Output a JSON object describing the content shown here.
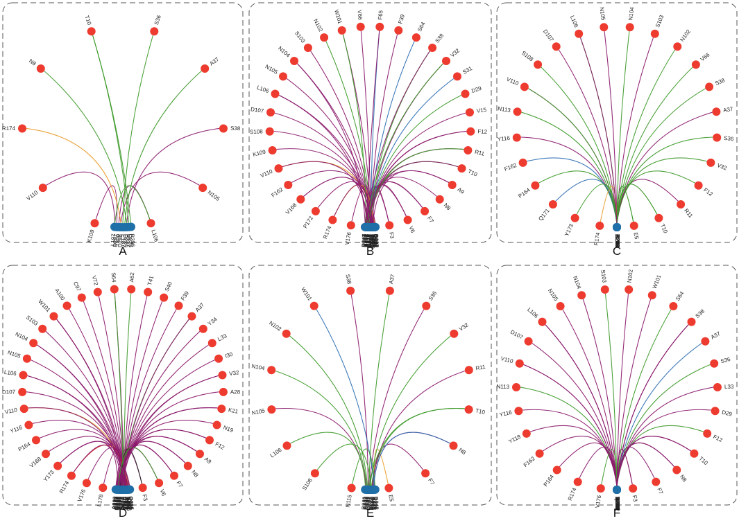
{
  "colors": {
    "node_red": "#ee3b2f",
    "node_blue": "#1f6fa8",
    "link_purple": "#8b1a6b",
    "link_green": "#3e9a2a",
    "link_orange": "#e89b2a",
    "link_blue": "#2f6fb3",
    "link_red": "#d42a1f",
    "link_black": "#222222"
  },
  "panels": [
    {
      "letter": "A",
      "red": [
        "L106",
        "N105",
        "S38",
        "A37",
        "S36",
        "T10",
        "N8",
        "R174",
        "V110",
        "K109"
      ],
      "blue": [
        "L197",
        "D297",
        "T300",
        "D298",
        "E187",
        "D279",
        "P227",
        "Q225",
        "R296"
      ],
      "links": [
        [
          "K109",
          "D297",
          "purple"
        ],
        [
          "V110",
          "L197",
          "purple"
        ],
        [
          "L106",
          "T300",
          "purple"
        ],
        [
          "N105",
          "D298",
          "purple"
        ],
        [
          "S38",
          "P227",
          "purple"
        ],
        [
          "A37",
          "D279",
          "green"
        ],
        [
          "S36",
          "E187",
          "green"
        ],
        [
          "T10",
          "Q225",
          "green"
        ],
        [
          "T10",
          "R296",
          "green"
        ],
        [
          "N8",
          "P227",
          "green"
        ],
        [
          "R174",
          "D298",
          "orange"
        ],
        [
          "L106",
          "L197",
          "green"
        ]
      ]
    },
    {
      "letter": "B",
      "red": [
        "F3",
        "V6",
        "F7",
        "N8",
        "A9",
        "T10",
        "R11",
        "F12",
        "V15",
        "D29",
        "S31",
        "V32",
        "S38",
        "S64",
        "F39",
        "F65",
        "V66",
        "W101",
        "N102",
        "S103",
        "N104",
        "N105",
        "L106",
        "D107",
        "S108",
        "K109",
        "V110",
        "F162",
        "V168",
        "P172",
        "R174",
        "V176"
      ],
      "blue": [
        "R287",
        "Q289",
        "Q297",
        "R292",
        "S279",
        "L190",
        "A281",
        "R229",
        "D280",
        "W283",
        "F221",
        "E234",
        "N243",
        "F231",
        "D246",
        "E228",
        "Q223",
        "E277",
        "Y278",
        "A276",
        "D274",
        "E273",
        "F252",
        "R251",
        "V232",
        "E230",
        "K227",
        "D247"
      ],
      "links": [
        [
          "F3",
          "D247",
          "purple"
        ],
        [
          "V6",
          "K227",
          "purple"
        ],
        [
          "F7",
          "E230",
          "purple"
        ],
        [
          "N8",
          "V232",
          "purple"
        ],
        [
          "A9",
          "R251",
          "purple"
        ],
        [
          "T10",
          "F252",
          "green"
        ],
        [
          "R11",
          "E273",
          "purple"
        ],
        [
          "F12",
          "D274",
          "purple"
        ],
        [
          "V15",
          "A276",
          "purple"
        ],
        [
          "D29",
          "Y278",
          "green"
        ],
        [
          "S31",
          "E277",
          "blue"
        ],
        [
          "V32",
          "Q223",
          "purple"
        ],
        [
          "S38",
          "E228",
          "green"
        ],
        [
          "S64",
          "D246",
          "blue"
        ],
        [
          "F39",
          "F231",
          "purple"
        ],
        [
          "F65",
          "N243",
          "blue"
        ],
        [
          "V66",
          "E234",
          "purple"
        ],
        [
          "W101",
          "F221",
          "purple"
        ],
        [
          "N102",
          "W283",
          "green"
        ],
        [
          "S103",
          "D280",
          "purple"
        ],
        [
          "N104",
          "R229",
          "purple"
        ],
        [
          "N105",
          "A281",
          "purple"
        ],
        [
          "L106",
          "L190",
          "purple"
        ],
        [
          "D107",
          "S279",
          "purple"
        ],
        [
          "S108",
          "R292",
          "purple"
        ],
        [
          "K109",
          "Q297",
          "purple"
        ],
        [
          "V110",
          "Q289",
          "orange"
        ],
        [
          "F162",
          "R287",
          "purple"
        ],
        [
          "V168",
          "F221",
          "purple"
        ],
        [
          "P172",
          "S279",
          "purple"
        ],
        [
          "R174",
          "L190",
          "orange"
        ],
        [
          "V176",
          "D280",
          "purple"
        ],
        [
          "F3",
          "E234",
          "purple"
        ],
        [
          "F7",
          "D246",
          "purple"
        ],
        [
          "T10",
          "Q223",
          "purple"
        ],
        [
          "R11",
          "E277",
          "green"
        ],
        [
          "F12",
          "A276",
          "purple"
        ],
        [
          "V32",
          "E273",
          "green"
        ],
        [
          "S38",
          "R251",
          "purple"
        ],
        [
          "F65",
          "V232",
          "purple"
        ],
        [
          "W101",
          "E230",
          "green"
        ],
        [
          "N104",
          "D247",
          "purple"
        ],
        [
          "L106",
          "F252",
          "purple"
        ],
        [
          "V110",
          "Y278",
          "purple"
        ],
        [
          "V168",
          "N243",
          "purple"
        ],
        [
          "R174",
          "F231",
          "purple"
        ],
        [
          "V6",
          "R229",
          "purple"
        ],
        [
          "A9",
          "A281",
          "purple"
        ]
      ]
    },
    {
      "letter": "C",
      "red": [
        "E5",
        "T10",
        "R11",
        "F12",
        "V32",
        "S36",
        "A37",
        "S38",
        "V66",
        "N102",
        "S103",
        "N104",
        "N105",
        "L106",
        "D107",
        "S108",
        "V110",
        "N113",
        "Y116",
        "F162",
        "P164",
        "Q171",
        "Y173",
        "R174"
      ],
      "blue": [
        "Y295",
        "S293",
        "S286",
        "R299",
        "D296",
        "D294",
        "A283",
        "R231",
        "N220",
        "L190",
        "C288",
        "S218",
        "C215",
        "D289",
        "D287",
        "D241",
        "R241",
        "R285",
        "D236",
        "F233",
        "F223",
        "R245"
      ],
      "links": [
        [
          "E5",
          "F223",
          "green"
        ],
        [
          "T10",
          "R245",
          "green"
        ],
        [
          "R11",
          "D236",
          "purple"
        ],
        [
          "F12",
          "F233",
          "green"
        ],
        [
          "V32",
          "R285",
          "green"
        ],
        [
          "S36",
          "R241",
          "green"
        ],
        [
          "A37",
          "D241",
          "purple"
        ],
        [
          "S38",
          "D287",
          "green"
        ],
        [
          "V66",
          "D289",
          "green"
        ],
        [
          "N102",
          "C215",
          "green"
        ],
        [
          "S103",
          "S218",
          "purple"
        ],
        [
          "N104",
          "C288",
          "green"
        ],
        [
          "N105",
          "L190",
          "purple"
        ],
        [
          "L106",
          "N220",
          "green"
        ],
        [
          "D107",
          "R231",
          "purple"
        ],
        [
          "S108",
          "A283",
          "green"
        ],
        [
          "V110",
          "D294",
          "purple"
        ],
        [
          "N113",
          "D296",
          "green"
        ],
        [
          "Y116",
          "R299",
          "purple"
        ],
        [
          "F162",
          "S286",
          "blue"
        ],
        [
          "P164",
          "S293",
          "green"
        ],
        [
          "Q171",
          "Y295",
          "blue"
        ],
        [
          "Y173",
          "F223",
          "green"
        ],
        [
          "R174",
          "D287",
          "orange"
        ],
        [
          "T10",
          "F233",
          "green"
        ],
        [
          "E5",
          "R241",
          "green"
        ],
        [
          "V110",
          "R285",
          "green"
        ],
        [
          "L106",
          "D236",
          "purple"
        ]
      ]
    },
    {
      "letter": "D",
      "red": [
        "F3",
        "V6",
        "F7",
        "N8",
        "A9",
        "F12",
        "N19",
        "K21",
        "A28",
        "V32",
        "I30",
        "L33",
        "Y34",
        "A37",
        "F39",
        "S40",
        "T41",
        "A62",
        "S64",
        "V72",
        "C97",
        "A100",
        "W101",
        "S103",
        "N104",
        "N105",
        "L106",
        "D107",
        "V110",
        "Y116",
        "P164",
        "V168",
        "Y173",
        "R174",
        "V176",
        "L178"
      ],
      "blue": [
        "Q225",
        "R298",
        "V302",
        "E192",
        "L190",
        "W296",
        "D281",
        "R279",
        "A278",
        "R224",
        "P227",
        "E232",
        "A226",
        "F254",
        "R253",
        "V250",
        "E275",
        "S271",
        "N270",
        "K273",
        "S306",
        "T303",
        "S305",
        "V204",
        "D276",
        "M269",
        "L204",
        "T277",
        "L272",
        "P274",
        "A200"
      ],
      "links": [
        [
          "F3",
          "A200",
          "purple"
        ],
        [
          "V6",
          "P274",
          "purple"
        ],
        [
          "F7",
          "L272",
          "purple"
        ],
        [
          "N8",
          "T277",
          "purple"
        ],
        [
          "A9",
          "L204",
          "purple"
        ],
        [
          "F12",
          "M269",
          "purple"
        ],
        [
          "N19",
          "D276",
          "purple"
        ],
        [
          "K21",
          "V204",
          "purple"
        ],
        [
          "A28",
          "S305",
          "purple"
        ],
        [
          "V32",
          "T303",
          "purple"
        ],
        [
          "I30",
          "S306",
          "purple"
        ],
        [
          "L33",
          "K273",
          "purple"
        ],
        [
          "Y34",
          "N270",
          "purple"
        ],
        [
          "A37",
          "S271",
          "green"
        ],
        [
          "F39",
          "E275",
          "purple"
        ],
        [
          "S40",
          "V250",
          "purple"
        ],
        [
          "T41",
          "R253",
          "purple"
        ],
        [
          "A62",
          "F254",
          "green"
        ],
        [
          "S64",
          "A226",
          "purple"
        ],
        [
          "V72",
          "E232",
          "purple"
        ],
        [
          "C97",
          "P227",
          "purple"
        ],
        [
          "A100",
          "R224",
          "purple"
        ],
        [
          "W101",
          "A278",
          "purple"
        ],
        [
          "S103",
          "R279",
          "purple"
        ],
        [
          "N104",
          "D281",
          "purple"
        ],
        [
          "N105",
          "W296",
          "purple"
        ],
        [
          "L106",
          "L190",
          "purple"
        ],
        [
          "D107",
          "E192",
          "purple"
        ],
        [
          "V110",
          "V302",
          "orange"
        ],
        [
          "Y116",
          "R298",
          "purple"
        ],
        [
          "P164",
          "Q225",
          "purple"
        ],
        [
          "V168",
          "W296",
          "purple"
        ],
        [
          "Y173",
          "D281",
          "purple"
        ],
        [
          "R174",
          "R279",
          "red"
        ],
        [
          "V176",
          "A278",
          "purple"
        ],
        [
          "L178",
          "R224",
          "purple"
        ],
        [
          "F3",
          "S306",
          "black"
        ],
        [
          "F7",
          "K273",
          "purple"
        ],
        [
          "A9",
          "N270",
          "purple"
        ],
        [
          "V32",
          "E275",
          "purple"
        ],
        [
          "A37",
          "V250",
          "purple"
        ],
        [
          "S64",
          "R253",
          "green"
        ],
        [
          "W101",
          "F254",
          "purple"
        ],
        [
          "N104",
          "A226",
          "purple"
        ],
        [
          "L106",
          "E232",
          "purple"
        ],
        [
          "V110",
          "P227",
          "purple"
        ],
        [
          "Y173",
          "S271",
          "purple"
        ],
        [
          "R174",
          "L204",
          "purple"
        ],
        [
          "V6",
          "M269",
          "green"
        ],
        [
          "N8",
          "D276",
          "purple"
        ],
        [
          "F12",
          "V204",
          "purple"
        ],
        [
          "K21",
          "S305",
          "purple"
        ]
      ]
    },
    {
      "letter": "E",
      "red": [
        "E5",
        "F7",
        "N8",
        "T10",
        "R11",
        "V32",
        "S36",
        "A37",
        "S38",
        "W101",
        "N102",
        "N104",
        "N105",
        "L106",
        "S108",
        "N115"
      ],
      "blue": [
        "R231",
        "A283",
        "F223",
        "D291",
        "R285",
        "Q219",
        "Q241",
        "T243",
        "E230",
        "D249",
        "A247",
        "R245",
        "F233",
        "R236",
        "D248"
      ],
      "links": [
        [
          "E5",
          "R236",
          "orange"
        ],
        [
          "F7",
          "R245",
          "purple"
        ],
        [
          "N8",
          "F233",
          "purple"
        ],
        [
          "T10",
          "D249",
          "green"
        ],
        [
          "R11",
          "A247",
          "purple"
        ],
        [
          "V32",
          "T243",
          "green"
        ],
        [
          "S36",
          "Q241",
          "purple"
        ],
        [
          "A37",
          "Q219",
          "green"
        ],
        [
          "S38",
          "R285",
          "purple"
        ],
        [
          "W101",
          "R236",
          "blue"
        ],
        [
          "N102",
          "D291",
          "green"
        ],
        [
          "N104",
          "F223",
          "green"
        ],
        [
          "N105",
          "A283",
          "purple"
        ],
        [
          "L106",
          "R231",
          "green"
        ],
        [
          "S108",
          "E230",
          "green"
        ],
        [
          "N115",
          "D248",
          "green"
        ],
        [
          "T10",
          "Q241",
          "green"
        ],
        [
          "N8",
          "F233",
          "blue"
        ]
      ]
    },
    {
      "letter": "F",
      "red": [
        "F3",
        "F7",
        "N8",
        "T10",
        "F12",
        "D29",
        "L33",
        "S36",
        "A37",
        "S38",
        "S64",
        "W101",
        "N102",
        "S103",
        "N104",
        "N105",
        "L106",
        "D107",
        "V110",
        "N113",
        "Y116",
        "Y118",
        "F162",
        "P164",
        "R174",
        "V176"
      ],
      "blue": [
        "P227",
        "A226",
        "V281",
        "Y280",
        "R224",
        "W222",
        "L285",
        "A283",
        "W291",
        "Q225",
        "L288",
        "R231",
        "F223",
        "F233",
        "R219",
        "N245",
        "R251",
        "K229",
        "K273",
        "E275",
        "R253",
        "S249",
        "E230",
        "D248"
      ],
      "links": [
        [
          "F3",
          "D248",
          "purple"
        ],
        [
          "F7",
          "E230",
          "purple"
        ],
        [
          "N8",
          "S249",
          "purple"
        ],
        [
          "T10",
          "R253",
          "purple"
        ],
        [
          "F12",
          "E275",
          "green"
        ],
        [
          "D29",
          "K273",
          "purple"
        ],
        [
          "L33",
          "K229",
          "purple"
        ],
        [
          "S36",
          "R251",
          "green"
        ],
        [
          "A37",
          "N245",
          "blue"
        ],
        [
          "S38",
          "R219",
          "purple"
        ],
        [
          "S64",
          "F233",
          "green"
        ],
        [
          "W101",
          "F223",
          "purple"
        ],
        [
          "N102",
          "R231",
          "purple"
        ],
        [
          "S103",
          "L288",
          "green"
        ],
        [
          "N104",
          "Q225",
          "purple"
        ],
        [
          "N105",
          "W291",
          "purple"
        ],
        [
          "L106",
          "A283",
          "purple"
        ],
        [
          "D107",
          "L285",
          "purple"
        ],
        [
          "V110",
          "W222",
          "purple"
        ],
        [
          "N113",
          "R224",
          "green"
        ],
        [
          "Y116",
          "Y280",
          "purple"
        ],
        [
          "Y118",
          "V281",
          "purple"
        ],
        [
          "F162",
          "A226",
          "purple"
        ],
        [
          "P164",
          "P227",
          "purple"
        ],
        [
          "R174",
          "D248",
          "purple"
        ],
        [
          "V176",
          "E230",
          "green"
        ],
        [
          "F3",
          "R251",
          "purple"
        ],
        [
          "N8",
          "K229",
          "purple"
        ],
        [
          "T10",
          "F223",
          "purple"
        ],
        [
          "L106",
          "L285",
          "purple"
        ],
        [
          "V110",
          "R231",
          "purple"
        ],
        [
          "S38",
          "K273",
          "purple"
        ]
      ]
    }
  ]
}
